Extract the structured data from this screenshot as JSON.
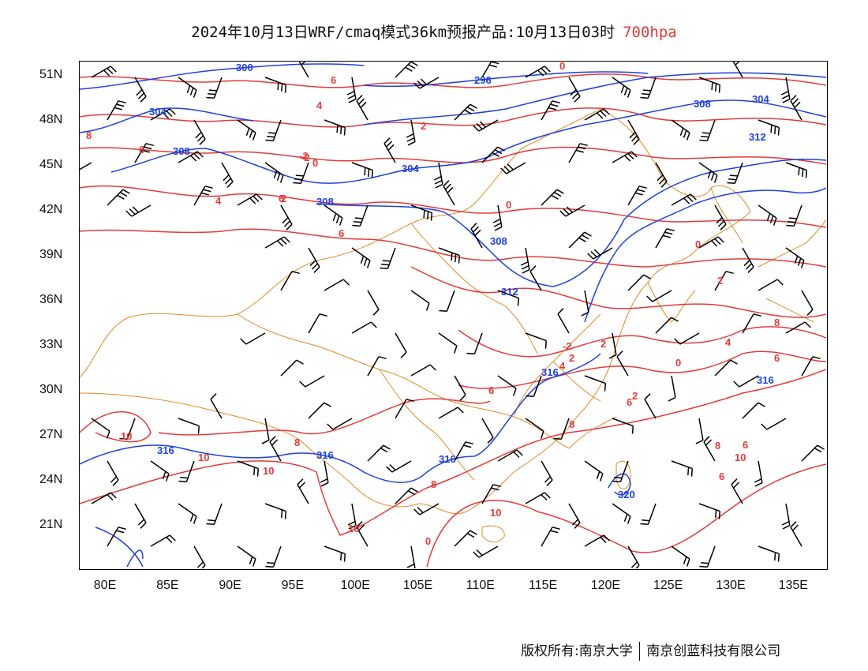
{
  "title": {
    "main": "2024年10月13日WRF/cmaq模式36km预报产品:10月13日03时",
    "level": "700hpa",
    "level_color": "#e23b3b"
  },
  "axes": {
    "lat_labels": [
      "51N",
      "48N",
      "45N",
      "42N",
      "39N",
      "36N",
      "33N",
      "30N",
      "27N",
      "24N",
      "21N"
    ],
    "lon_labels": [
      "80E",
      "85E",
      "90E",
      "95E",
      "100E",
      "105E",
      "110E",
      "115E",
      "120E",
      "125E",
      "130E",
      "135E"
    ]
  },
  "legend_colors": {
    "height_contour": "#1f3fe0",
    "temperature_contour": "#e23b3b",
    "boundaries": "#e08a2a",
    "wind_barbs": "#000000"
  },
  "map_data": {
    "height_contour_labels": [
      "300",
      "296",
      "304",
      "304",
      "308",
      "308",
      "308",
      "312",
      "312",
      "316",
      "316",
      "316",
      "316",
      "316",
      "304",
      "308",
      "320"
    ],
    "temperature_contour_labels": [
      "6",
      "0",
      "4",
      "8",
      "6",
      "-2",
      "0",
      "2",
      "4",
      "6",
      "2",
      "6",
      "0",
      "2",
      "4",
      "6",
      "8",
      "-2",
      "2",
      "0",
      "2",
      "4",
      "6",
      "6",
      "10",
      "8",
      "10",
      "10",
      "10",
      "8",
      "10",
      "0",
      "8",
      "2",
      "6",
      "10",
      "8",
      "6",
      "0",
      "-2"
    ]
  },
  "footer": {
    "copyright": "版权所有:南京大学",
    "company": "南京创蓝科技有限公司"
  }
}
